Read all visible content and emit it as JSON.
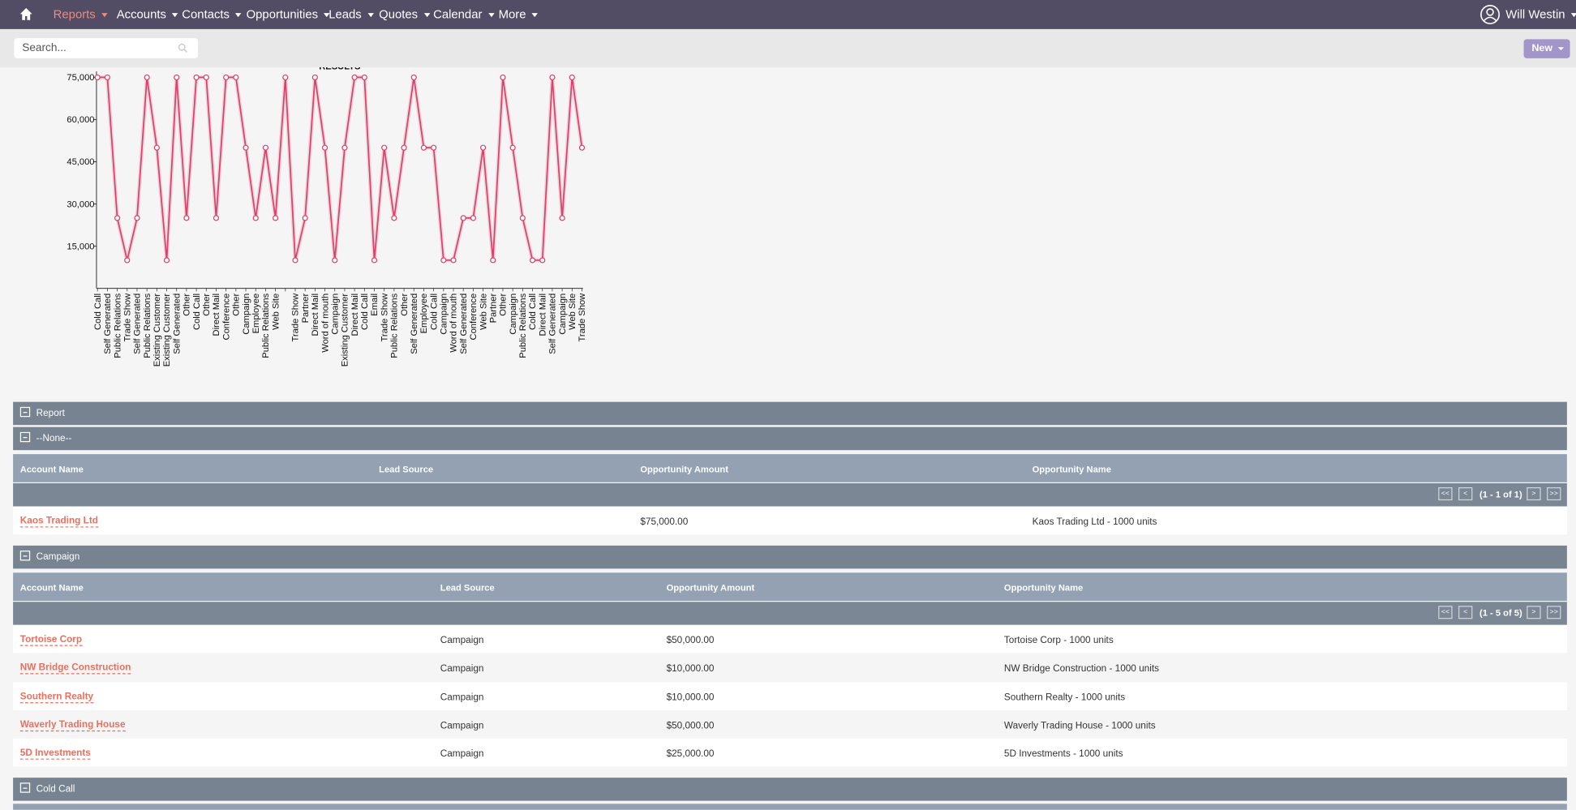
{
  "nav": {
    "items": [
      "Reports",
      "Accounts",
      "Contacts",
      "Opportunities",
      "Leads",
      "Quotes",
      "Calendar",
      "More"
    ],
    "user": "Will Westin"
  },
  "search": {
    "placeholder": "Search..."
  },
  "new_button": "New",
  "chart_data": {
    "type": "line",
    "title": "RESULTS",
    "categories": [
      "Cold Call",
      "Self Generated",
      "Public Relations",
      "Trade Show",
      "Self Generated",
      "Public Relations",
      "Existing Customer",
      "Existing Customer",
      "Self Generated",
      "Other",
      "Cold Call",
      "Other",
      "Direct Mail",
      "Conference",
      "Other",
      "Campaign",
      "Employee",
      "Public Relations",
      "Web Site",
      null,
      "Trade Show",
      "Partner",
      "Direct Mail",
      "Word of mouth",
      "Campaign",
      "Existing Customer",
      "Direct Mail",
      "Cold Call",
      "Email",
      "Trade Show",
      "Public Relations",
      "Other",
      "Self Generated",
      "Employee",
      "Cold Call",
      "Campaign",
      "Word of mouth",
      "Self Generated",
      "Conference",
      "Web Site",
      "Partner",
      "Other",
      "Campaign",
      "Public Relations",
      "Cold Call",
      "Direct Mail",
      "Self Generated",
      "Campaign",
      "Web Site",
      "Trade Show"
    ],
    "series": [
      {
        "name": "Opportunity Amount",
        "color": "#d9426b",
        "values": [
          75000,
          75000,
          25000,
          10000,
          25000,
          75000,
          50000,
          10000,
          75000,
          25000,
          75000,
          75000,
          25000,
          75000,
          75000,
          50000,
          25000,
          50000,
          25000,
          75000,
          10000,
          25000,
          75000,
          50000,
          10000,
          50000,
          75000,
          75000,
          10000,
          50000,
          25000,
          50000,
          75000,
          50000,
          50000,
          10000,
          10000,
          25000,
          25000,
          50000,
          10000,
          75000,
          50000,
          25000,
          10000,
          10000,
          75000,
          25000,
          75000,
          50000
        ]
      }
    ],
    "ylim": [
      0,
      75000
    ],
    "yticks": [
      {
        "value": 15000,
        "label": "15,000"
      },
      {
        "value": 30000,
        "label": "30,000"
      },
      {
        "value": 45000,
        "label": "45,000"
      },
      {
        "value": 60000,
        "label": "60,000"
      },
      {
        "value": 75000,
        "label": "75,000"
      }
    ]
  },
  "report": {
    "title": "Report",
    "groups": [
      {
        "name": "--None--",
        "columns": [
          "Account Name",
          "Lead Source",
          "Opportunity Amount",
          "Opportunity Name"
        ],
        "pagination": {
          "first": "<<",
          "prev": "<",
          "info": "(1 - 1 of 1)",
          "next": ">",
          "last": ">>"
        },
        "rows": [
          [
            "Kaos Trading Ltd",
            "",
            "$75,000.00",
            "Kaos Trading Ltd - 1000 units"
          ]
        ]
      },
      {
        "name": "Campaign",
        "columns": [
          "Account Name",
          "Lead Source",
          "Opportunity Amount",
          "Opportunity Name"
        ],
        "pagination": {
          "first": "<<",
          "prev": "<",
          "info": "(1 - 5 of 5)",
          "next": ">",
          "last": ">>"
        },
        "rows": [
          [
            "Tortoise Corp",
            "Campaign",
            "$50,000.00",
            "Tortoise Corp - 1000 units"
          ],
          [
            "NW Bridge Construction",
            "Campaign",
            "$10,000.00",
            "NW Bridge Construction - 1000 units"
          ],
          [
            "Southern Realty",
            "Campaign",
            "$10,000.00",
            "Southern Realty - 1000 units"
          ],
          [
            "Waverly Trading House",
            "Campaign",
            "$50,000.00",
            "Waverly Trading House - 1000 units"
          ],
          [
            "5D Investments",
            "Campaign",
            "$25,000.00",
            "5D Investments - 1000 units"
          ]
        ]
      },
      {
        "name": "Cold Call"
      }
    ]
  }
}
